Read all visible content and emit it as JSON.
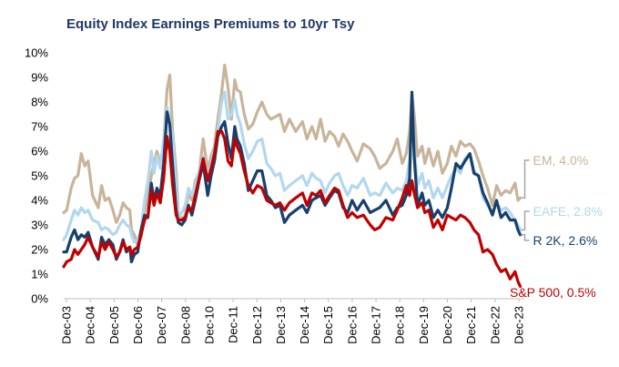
{
  "chart_data": {
    "type": "line",
    "title": "Equity Index Earnings  Premiums to 10yr Tsy",
    "xlabel": "",
    "ylabel": "",
    "ylim": [
      0,
      10
    ],
    "yticks": [
      "0%",
      "1%",
      "2%",
      "3%",
      "4%",
      "5%",
      "6%",
      "7%",
      "8%",
      "9%",
      "10%"
    ],
    "xlim": [
      2003.92,
      2024.25
    ],
    "xticks": [
      "Dec-03",
      "Dec-04",
      "Dec-05",
      "Dec-06",
      "Dec-07",
      "Dec-08",
      "Dec-10",
      "Dec-11",
      "Dec-12",
      "Dec-13",
      "Dec-14",
      "Dec-15",
      "Dec-16",
      "Dec-17",
      "Dec-18",
      "Dec-19",
      "Dec-20",
      "Dec-21",
      "Dec-22",
      "Dec-23"
    ],
    "grid": false,
    "legend": "end-of-line labels (right)",
    "series": [
      {
        "name": "EM",
        "end_label": "EM, 4.0%",
        "color": "#c8b49a",
        "x": [
          2003.92,
          2004.05,
          2004.25,
          2004.4,
          2004.55,
          2004.7,
          2004.85,
          2005.0,
          2005.2,
          2005.45,
          2005.6,
          2005.75,
          2005.92,
          2006.1,
          2006.25,
          2006.4,
          2006.55,
          2006.7,
          2006.85,
          2006.92,
          2007.05,
          2007.2,
          2007.35,
          2007.5,
          2007.65,
          2007.8,
          2007.92,
          2008.05,
          2008.2,
          2008.35,
          2008.5,
          2008.62,
          2008.75,
          2008.9,
          2009.0,
          2009.15,
          2009.3,
          2009.45,
          2009.6,
          2009.75,
          2009.92,
          2010.1,
          2010.3,
          2010.45,
          2010.6,
          2010.75,
          2010.92,
          2011.05,
          2011.2,
          2011.35,
          2011.5,
          2011.6,
          2011.75,
          2011.92,
          2012.1,
          2012.3,
          2012.5,
          2012.7,
          2012.92,
          2013.1,
          2013.3,
          2013.5,
          2013.7,
          2013.92,
          2014.2,
          2014.5,
          2014.7,
          2014.92,
          2015.1,
          2015.3,
          2015.5,
          2015.7,
          2015.92,
          2016.1,
          2016.3,
          2016.5,
          2016.7,
          2016.92,
          2017.2,
          2017.5,
          2017.7,
          2017.92,
          2018.2,
          2018.5,
          2018.7,
          2018.92,
          2019.1,
          2019.25,
          2019.35,
          2019.45,
          2019.6,
          2019.8,
          2019.92,
          2020.1,
          2020.3,
          2020.5,
          2020.7,
          2020.92,
          2021.1,
          2021.3,
          2021.5,
          2021.7,
          2021.92,
          2022.1,
          2022.3,
          2022.5,
          2022.7,
          2022.92,
          2023.1,
          2023.3,
          2023.5,
          2023.7,
          2023.92,
          2024.05,
          2024.15
        ],
        "y": [
          3.5,
          3.6,
          4.5,
          4.9,
          5.0,
          5.9,
          5.4,
          5.6,
          4.2,
          3.7,
          4.6,
          4.0,
          4.1,
          3.6,
          3.1,
          3.4,
          3.9,
          3.7,
          3.6,
          2.8,
          2.6,
          2.2,
          2.5,
          3.5,
          4.1,
          5.0,
          5.5,
          6.0,
          5.5,
          6.3,
          8.5,
          9.1,
          6.8,
          5.2,
          3.5,
          3.2,
          3.4,
          4.3,
          4.0,
          4.8,
          5.1,
          6.5,
          5.2,
          5.8,
          6.2,
          7.3,
          8.4,
          9.5,
          8.6,
          7.3,
          8.9,
          8.5,
          8.4,
          7.5,
          6.9,
          7.1,
          7.6,
          8.0,
          7.5,
          7.3,
          7.4,
          7.5,
          6.8,
          7.3,
          6.8,
          7.2,
          6.5,
          7.0,
          6.5,
          7.3,
          6.4,
          6.8,
          6.6,
          6.2,
          6.7,
          6.4,
          6.0,
          5.6,
          6.3,
          6.1,
          5.8,
          5.3,
          5.5,
          6.0,
          6.5,
          5.5,
          5.9,
          6.8,
          8.3,
          7.5,
          5.8,
          6.2,
          5.5,
          6.1,
          5.4,
          6.0,
          5.1,
          5.5,
          6.2,
          5.8,
          6.4,
          6.2,
          6.3,
          6.1,
          5.6,
          5.0,
          4.5,
          3.8,
          4.6,
          4.2,
          4.4,
          4.3,
          4.7,
          4.0,
          4.1
        ]
      },
      {
        "name": "EAFE",
        "end_label": "EAFE, 2.8%",
        "color": "#b3d7ee",
        "x": [
          2003.92,
          2004.05,
          2004.25,
          2004.4,
          2004.55,
          2004.7,
          2004.85,
          2005.0,
          2005.2,
          2005.45,
          2005.6,
          2005.75,
          2005.92,
          2006.1,
          2006.25,
          2006.4,
          2006.55,
          2006.7,
          2006.85,
          2006.92,
          2007.05,
          2007.2,
          2007.35,
          2007.5,
          2007.65,
          2007.8,
          2007.92,
          2008.05,
          2008.2,
          2008.35,
          2008.5,
          2008.62,
          2008.75,
          2008.9,
          2009.0,
          2009.15,
          2009.3,
          2009.45,
          2009.6,
          2009.75,
          2009.92,
          2010.1,
          2010.3,
          2010.45,
          2010.6,
          2010.75,
          2010.92,
          2011.05,
          2011.2,
          2011.35,
          2011.5,
          2011.6,
          2011.75,
          2011.92,
          2012.1,
          2012.3,
          2012.5,
          2012.7,
          2012.92,
          2013.1,
          2013.3,
          2013.5,
          2013.7,
          2013.92,
          2014.2,
          2014.5,
          2014.7,
          2014.92,
          2015.1,
          2015.3,
          2015.5,
          2015.7,
          2015.92,
          2016.1,
          2016.3,
          2016.5,
          2016.7,
          2016.92,
          2017.2,
          2017.5,
          2017.7,
          2017.92,
          2018.2,
          2018.5,
          2018.7,
          2018.92,
          2019.1,
          2019.25,
          2019.35,
          2019.45,
          2019.6,
          2019.8,
          2019.92,
          2020.1,
          2020.3,
          2020.5,
          2020.7,
          2020.92,
          2021.1,
          2021.3,
          2021.5,
          2021.7,
          2021.92,
          2022.1,
          2022.3,
          2022.5,
          2022.7,
          2022.92,
          2023.1,
          2023.3,
          2023.5,
          2023.7,
          2023.92,
          2024.05,
          2024.15
        ],
        "y": [
          2.4,
          2.6,
          3.2,
          3.6,
          3.4,
          3.7,
          3.5,
          3.6,
          3.2,
          3.1,
          2.8,
          2.9,
          2.8,
          2.6,
          2.7,
          3.0,
          3.2,
          3.0,
          2.9,
          2.6,
          2.3,
          2.4,
          2.8,
          4.0,
          4.8,
          6.0,
          5.1,
          5.8,
          5.3,
          6.5,
          7.8,
          7.3,
          6.5,
          4.5,
          3.3,
          3.5,
          3.8,
          4.5,
          4.2,
          4.6,
          5.2,
          5.8,
          5.0,
          5.5,
          6.0,
          6.8,
          8.0,
          8.4,
          7.3,
          7.5,
          8.1,
          7.5,
          7.1,
          6.3,
          5.7,
          6.0,
          6.4,
          6.5,
          5.5,
          5.3,
          5.0,
          5.1,
          4.4,
          4.6,
          4.8,
          5.0,
          4.6,
          5.1,
          4.9,
          4.8,
          4.3,
          4.7,
          5.0,
          5.1,
          4.6,
          4.2,
          4.6,
          4.5,
          4.9,
          4.2,
          4.3,
          4.2,
          4.7,
          4.3,
          4.5,
          4.4,
          4.8,
          5.6,
          8.0,
          6.2,
          4.6,
          5.1,
          4.5,
          4.8,
          4.1,
          4.5,
          4.1,
          4.6,
          5.0,
          5.3,
          5.1,
          5.7,
          5.9,
          5.2,
          5.0,
          4.1,
          3.8,
          3.5,
          3.9,
          3.6,
          3.7,
          3.5,
          3.2,
          3.0,
          2.8
        ]
      },
      {
        "name": "R 2K",
        "end_label": "R 2K, 2.6%",
        "color": "#17406d",
        "x": [
          2003.92,
          2004.05,
          2004.25,
          2004.4,
          2004.55,
          2004.7,
          2004.85,
          2005.0,
          2005.2,
          2005.45,
          2005.6,
          2005.75,
          2005.92,
          2006.1,
          2006.25,
          2006.4,
          2006.55,
          2006.7,
          2006.85,
          2006.92,
          2007.05,
          2007.2,
          2007.35,
          2007.5,
          2007.65,
          2007.8,
          2007.92,
          2008.05,
          2008.2,
          2008.35,
          2008.5,
          2008.62,
          2008.75,
          2008.9,
          2009.0,
          2009.15,
          2009.3,
          2009.45,
          2009.6,
          2009.75,
          2009.92,
          2010.1,
          2010.3,
          2010.45,
          2010.6,
          2010.75,
          2010.92,
          2011.05,
          2011.2,
          2011.35,
          2011.5,
          2011.6,
          2011.75,
          2011.92,
          2012.1,
          2012.3,
          2012.5,
          2012.7,
          2012.92,
          2013.1,
          2013.3,
          2013.5,
          2013.7,
          2013.92,
          2014.2,
          2014.5,
          2014.7,
          2014.92,
          2015.1,
          2015.3,
          2015.5,
          2015.7,
          2015.92,
          2016.1,
          2016.3,
          2016.5,
          2016.7,
          2016.92,
          2017.2,
          2017.5,
          2017.7,
          2017.92,
          2018.2,
          2018.5,
          2018.7,
          2018.92,
          2019.1,
          2019.25,
          2019.35,
          2019.45,
          2019.6,
          2019.8,
          2019.92,
          2020.1,
          2020.3,
          2020.5,
          2020.7,
          2020.92,
          2021.1,
          2021.3,
          2021.5,
          2021.7,
          2021.92,
          2022.1,
          2022.3,
          2022.5,
          2022.7,
          2022.92,
          2023.1,
          2023.3,
          2023.5,
          2023.7,
          2023.92,
          2024.05,
          2024.15
        ],
        "y": [
          1.9,
          1.9,
          2.5,
          2.8,
          2.4,
          2.6,
          2.5,
          2.7,
          2.1,
          1.6,
          2.5,
          2.2,
          2.4,
          2.2,
          1.6,
          1.9,
          2.4,
          1.9,
          2.1,
          1.5,
          1.8,
          1.9,
          2.8,
          3.4,
          3.3,
          4.7,
          4.0,
          4.5,
          4.2,
          5.5,
          7.6,
          7.1,
          5.4,
          3.6,
          3.1,
          3.0,
          3.2,
          3.8,
          3.4,
          4.0,
          4.8,
          5.5,
          4.2,
          5.0,
          5.6,
          6.6,
          7.0,
          7.2,
          6.3,
          5.7,
          7.0,
          6.5,
          6.2,
          5.5,
          4.4,
          4.8,
          5.2,
          5.2,
          4.2,
          4.0,
          3.7,
          3.8,
          3.1,
          3.4,
          3.6,
          3.8,
          3.5,
          4.0,
          4.1,
          4.2,
          3.8,
          4.1,
          4.4,
          4.3,
          3.7,
          3.5,
          4.0,
          3.6,
          4.0,
          3.5,
          3.6,
          3.7,
          4.0,
          3.4,
          3.7,
          3.8,
          4.2,
          4.9,
          8.4,
          5.8,
          3.8,
          4.3,
          3.8,
          4.0,
          3.3,
          3.6,
          3.3,
          3.7,
          4.5,
          5.5,
          5.3,
          5.6,
          5.9,
          5.1,
          5.0,
          4.3,
          3.9,
          3.4,
          4.0,
          3.3,
          3.5,
          3.2,
          3.2,
          2.8,
          2.6
        ]
      },
      {
        "name": "S&P 500",
        "end_label": "S&P 500, 0.5%",
        "color": "#c00000",
        "x": [
          2003.92,
          2004.05,
          2004.25,
          2004.4,
          2004.55,
          2004.7,
          2004.85,
          2005.0,
          2005.2,
          2005.45,
          2005.6,
          2005.75,
          2005.92,
          2006.1,
          2006.25,
          2006.4,
          2006.55,
          2006.7,
          2006.85,
          2006.92,
          2007.05,
          2007.2,
          2007.35,
          2007.5,
          2007.65,
          2007.8,
          2007.92,
          2008.05,
          2008.2,
          2008.35,
          2008.5,
          2008.62,
          2008.75,
          2008.9,
          2009.0,
          2009.15,
          2009.3,
          2009.45,
          2009.6,
          2009.75,
          2009.92,
          2010.1,
          2010.3,
          2010.45,
          2010.6,
          2010.75,
          2010.92,
          2011.05,
          2011.2,
          2011.35,
          2011.5,
          2011.6,
          2011.75,
          2011.92,
          2012.1,
          2012.3,
          2012.5,
          2012.7,
          2012.92,
          2013.1,
          2013.3,
          2013.5,
          2013.7,
          2013.92,
          2014.2,
          2014.5,
          2014.7,
          2014.92,
          2015.1,
          2015.3,
          2015.5,
          2015.7,
          2015.92,
          2016.1,
          2016.3,
          2016.5,
          2016.7,
          2016.92,
          2017.2,
          2017.5,
          2017.7,
          2017.92,
          2018.2,
          2018.5,
          2018.7,
          2018.92,
          2019.1,
          2019.25,
          2019.35,
          2019.45,
          2019.6,
          2019.8,
          2019.92,
          2020.1,
          2020.3,
          2020.5,
          2020.7,
          2020.92,
          2021.1,
          2021.3,
          2021.5,
          2021.7,
          2021.92,
          2022.1,
          2022.3,
          2022.5,
          2022.7,
          2022.92,
          2023.1,
          2023.3,
          2023.5,
          2023.7,
          2023.92,
          2024.05,
          2024.15
        ],
        "y": [
          1.3,
          1.5,
          1.6,
          2.0,
          1.8,
          2.0,
          2.2,
          2.5,
          2.1,
          1.7,
          2.3,
          2.0,
          2.3,
          2.0,
          1.7,
          1.9,
          2.3,
          2.0,
          2.1,
          1.8,
          2.0,
          2.1,
          2.6,
          3.2,
          3.4,
          4.4,
          3.8,
          4.3,
          3.9,
          4.9,
          6.6,
          6.0,
          4.6,
          3.4,
          3.2,
          3.2,
          3.3,
          3.7,
          3.6,
          4.2,
          4.9,
          5.7,
          4.8,
          5.3,
          5.9,
          6.8,
          6.8,
          6.5,
          5.6,
          5.4,
          6.5,
          6.2,
          5.9,
          5.2,
          4.6,
          4.3,
          4.6,
          4.5,
          4.0,
          3.9,
          3.8,
          3.9,
          3.6,
          3.9,
          4.1,
          4.3,
          3.8,
          4.3,
          4.2,
          4.4,
          3.9,
          4.2,
          4.5,
          4.4,
          3.8,
          3.3,
          3.5,
          3.3,
          3.4,
          3.0,
          2.8,
          2.9,
          3.3,
          3.2,
          3.6,
          4.1,
          4.6,
          4.2,
          4.8,
          4.3,
          3.7,
          3.9,
          3.5,
          3.6,
          2.9,
          3.2,
          2.8,
          3.4,
          3.3,
          3.2,
          3.4,
          3.3,
          3.1,
          2.8,
          2.6,
          1.9,
          2.0,
          1.8,
          1.4,
          1.1,
          1.2,
          0.8,
          1.1,
          0.7,
          0.5
        ]
      }
    ]
  }
}
